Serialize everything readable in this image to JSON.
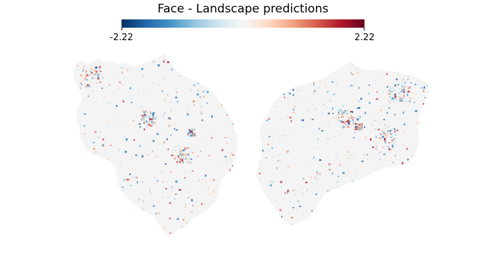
{
  "title": "Face - Landscape predictions",
  "colorbar": {
    "min_label": "-2.22",
    "max_label": "2.22",
    "colormap": "RdBu_r",
    "stops": [
      "#053061",
      "#2166ac",
      "#4393c3",
      "#92c5de",
      "#d1e5f0",
      "#f7f7f7",
      "#fddbc7",
      "#f4a582",
      "#d6604d",
      "#b2182b",
      "#67001f"
    ]
  },
  "colors": {
    "cortex_background": "#f4f4f4",
    "positive": "#d6604d",
    "negative": "#2f7ab8"
  }
}
